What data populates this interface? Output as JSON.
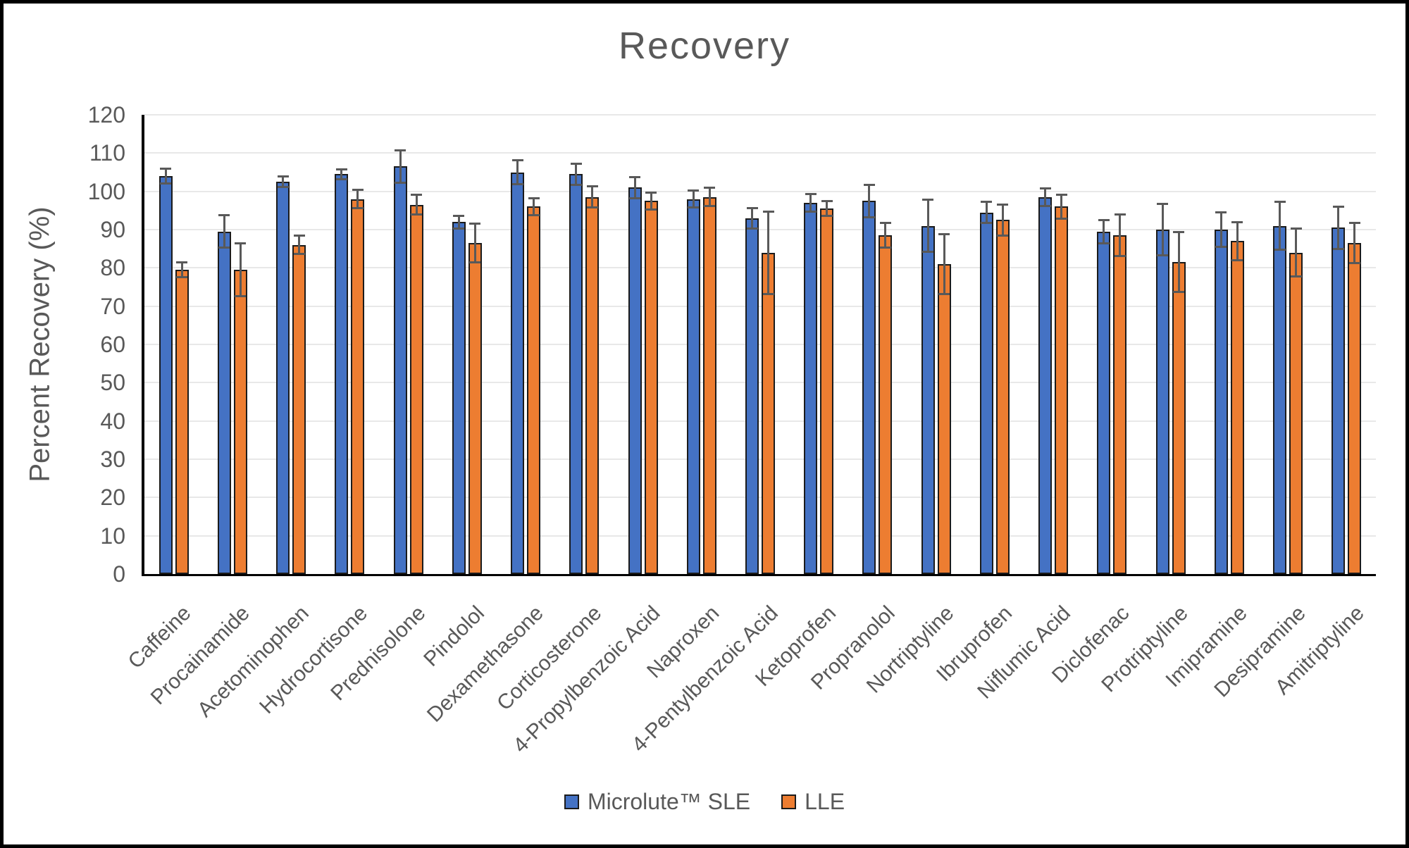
{
  "colors": {
    "series_blue": "#4472C4",
    "series_orange": "#ED7D31",
    "bar_border": "#1b1b1b",
    "axis": "#000000",
    "gridline": "#e8e8e8",
    "text": "#595959",
    "error_bar": "#595959",
    "frame_border": "#000000",
    "background": "#ffffff"
  },
  "chart_data": {
    "type": "bar",
    "title": "Recovery",
    "xlabel": "",
    "ylabel": "Percent Recovery (%)",
    "ylim": [
      0,
      120
    ],
    "ytick_step": 10,
    "grid": true,
    "error_bars": true,
    "legend_position": "bottom-center",
    "categories": [
      "Caffeine",
      "Procainamide",
      "Acetominophen",
      "Hydrocortisone",
      "Prednisolone",
      "Pindolol",
      "Dexamethasone",
      "Corticosterone",
      "4-Propylbenzoic Acid",
      "Naproxen",
      "4-Pentylbenzoic Acid",
      "Ketoprofen",
      "Propranolol",
      "Nortriptyline",
      "Ibruprofen",
      "Niflumic Acid",
      "Diclofenac",
      "Protriptyline",
      "Imipramine",
      "Desipramine",
      "Amitriptyline"
    ],
    "series": [
      {
        "name": "Microlute™ SLE",
        "color": "#4472C4",
        "values": [
          104,
          89.5,
          102.5,
          104.5,
          106.5,
          92,
          105,
          104.5,
          101,
          98,
          93,
          97,
          97.5,
          91,
          94.5,
          98.5,
          89.5,
          90,
          90,
          91,
          90.5
        ],
        "errors": [
          1.7,
          4,
          1.1,
          1,
          4,
          1.4,
          2.9,
          2.5,
          2.5,
          2,
          2.4,
          2,
          4,
          6.5,
          2.5,
          2,
          2.8,
          6.4,
          4.2,
          6,
          5.2
        ]
      },
      {
        "name": "LLE",
        "color": "#ED7D31",
        "values": [
          79.5,
          79.5,
          86,
          98,
          96.5,
          86.5,
          96,
          98.5,
          97.5,
          98.5,
          84,
          95.5,
          88.5,
          81,
          92.5,
          96,
          88.5,
          81.5,
          87,
          84,
          86.5
        ],
        "errors": [
          1.7,
          6.7,
          2.1,
          2.1,
          2.3,
          4.8,
          2,
          2.5,
          1.9,
          2.1,
          10.5,
          1.6,
          2.9,
          7.5,
          3.7,
          2.9,
          5.1,
          7.5,
          4.7,
          6,
          5
        ]
      }
    ]
  }
}
